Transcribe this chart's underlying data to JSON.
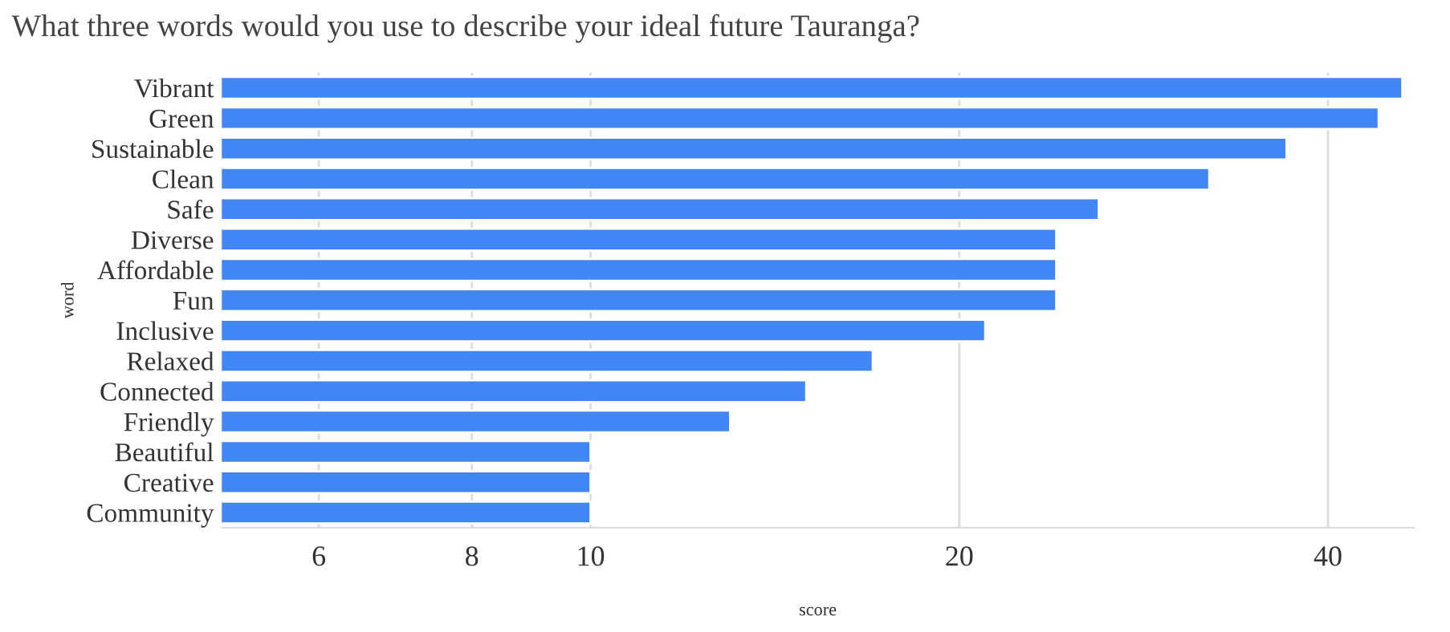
{
  "chart_data": {
    "type": "bar",
    "orientation": "horizontal",
    "title": "What three words would you use to describe your ideal future Tauranga?",
    "xlabel": "score",
    "ylabel": "word",
    "categories": [
      "Vibrant",
      "Green",
      "Sustainable",
      "Clean",
      "Safe",
      "Diverse",
      "Affordable",
      "Fun",
      "Inclusive",
      "Relaxed",
      "Connected",
      "Friendly",
      "Beautiful",
      "Creative",
      "Community"
    ],
    "series": [
      {
        "color": "#4285f4",
        "values": [
          46,
          44,
          37,
          32,
          26,
          24,
          24,
          24,
          21,
          17,
          15,
          13,
          10,
          10,
          10
        ]
      }
    ],
    "log": "x",
    "xlim": [
      5,
      47
    ],
    "xticks": [
      6,
      8,
      10,
      20,
      40
    ],
    "grid": "x"
  }
}
